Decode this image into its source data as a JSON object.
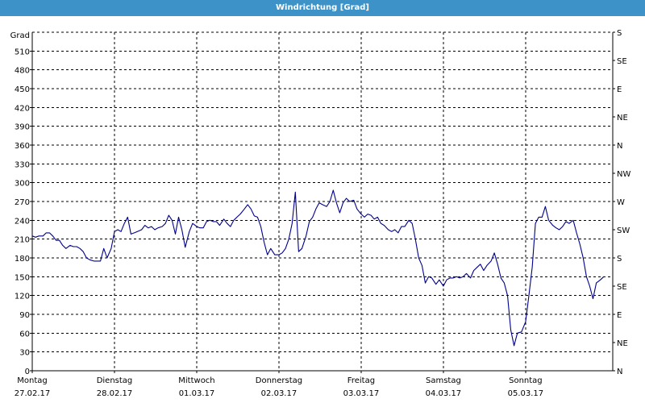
{
  "window": {
    "title": "Windrichtung [Grad]"
  },
  "colors": {
    "title_bar": "#3d93c8",
    "line": "#00008b",
    "grid": "#000000"
  },
  "chart_data": {
    "type": "line",
    "title": "Windrichtung [Grad]",
    "ylabel": "Grad",
    "ylim": [
      0,
      540
    ],
    "y_ticks": [
      0,
      30,
      60,
      90,
      120,
      150,
      180,
      210,
      240,
      270,
      300,
      330,
      360,
      390,
      420,
      450,
      480,
      510
    ],
    "y2_ticks": [
      "N",
      "NE",
      "E",
      "SE",
      "S",
      "SW",
      "W",
      "NW",
      "N",
      "NE",
      "E",
      "SE",
      "S"
    ],
    "x_days": [
      {
        "day": "Montag",
        "date": "27.02.17"
      },
      {
        "day": "Dienstag",
        "date": "28.02.17"
      },
      {
        "day": "Mittwoch",
        "date": "01.03.17"
      },
      {
        "day": "Donnerstag",
        "date": "02.03.17"
      },
      {
        "day": "Freitag",
        "date": "03.03.17"
      },
      {
        "day": "Samstag",
        "date": "04.03.17"
      },
      {
        "day": "Sonntag",
        "date": "05.03.17"
      }
    ],
    "x_range_days": [
      0,
      7.06
    ],
    "grid": true,
    "series": [
      {
        "points": [
          [
            0.0,
            215
          ],
          [
            0.04,
            213
          ],
          [
            0.08,
            215
          ],
          [
            0.13,
            215
          ],
          [
            0.17,
            220
          ],
          [
            0.21,
            220
          ],
          [
            0.25,
            215
          ],
          [
            0.29,
            208
          ],
          [
            0.33,
            208
          ],
          [
            0.37,
            200
          ],
          [
            0.41,
            195
          ],
          [
            0.46,
            200
          ],
          [
            0.5,
            198
          ],
          [
            0.54,
            198
          ],
          [
            0.58,
            195
          ],
          [
            0.62,
            190
          ],
          [
            0.66,
            180
          ],
          [
            0.7,
            177
          ],
          [
            0.75,
            175
          ],
          [
            0.79,
            175
          ],
          [
            0.83,
            175
          ],
          [
            0.87,
            195
          ],
          [
            0.91,
            180
          ],
          [
            0.96,
            195
          ],
          [
            1.0,
            222
          ],
          [
            1.04,
            225
          ],
          [
            1.08,
            222
          ],
          [
            1.12,
            235
          ],
          [
            1.16,
            245
          ],
          [
            1.2,
            218
          ],
          [
            1.24,
            220
          ],
          [
            1.28,
            222
          ],
          [
            1.33,
            225
          ],
          [
            1.37,
            232
          ],
          [
            1.41,
            228
          ],
          [
            1.45,
            230
          ],
          [
            1.49,
            225
          ],
          [
            1.53,
            228
          ],
          [
            1.58,
            230
          ],
          [
            1.62,
            235
          ],
          [
            1.66,
            248
          ],
          [
            1.7,
            240
          ],
          [
            1.74,
            218
          ],
          [
            1.78,
            245
          ],
          [
            1.82,
            225
          ],
          [
            1.86,
            197
          ],
          [
            1.91,
            222
          ],
          [
            1.95,
            235
          ],
          [
            2.0,
            230
          ],
          [
            2.04,
            228
          ],
          [
            2.08,
            228
          ],
          [
            2.12,
            238
          ],
          [
            2.16,
            240
          ],
          [
            2.2,
            238
          ],
          [
            2.24,
            238
          ],
          [
            2.28,
            232
          ],
          [
            2.33,
            242
          ],
          [
            2.37,
            235
          ],
          [
            2.41,
            230
          ],
          [
            2.45,
            240
          ],
          [
            2.49,
            245
          ],
          [
            2.53,
            250
          ],
          [
            2.58,
            258
          ],
          [
            2.62,
            265
          ],
          [
            2.66,
            258
          ],
          [
            2.7,
            247
          ],
          [
            2.74,
            245
          ],
          [
            2.78,
            230
          ],
          [
            2.82,
            205
          ],
          [
            2.86,
            185
          ],
          [
            2.9,
            195
          ],
          [
            2.95,
            185
          ],
          [
            3.0,
            185
          ],
          [
            3.04,
            188
          ],
          [
            3.08,
            195
          ],
          [
            3.12,
            210
          ],
          [
            3.16,
            235
          ],
          [
            3.2,
            285
          ],
          [
            3.24,
            190
          ],
          [
            3.28,
            195
          ],
          [
            3.33,
            215
          ],
          [
            3.37,
            238
          ],
          [
            3.41,
            245
          ],
          [
            3.45,
            258
          ],
          [
            3.49,
            268
          ],
          [
            3.53,
            265
          ],
          [
            3.58,
            262
          ],
          [
            3.62,
            270
          ],
          [
            3.66,
            288
          ],
          [
            3.7,
            268
          ],
          [
            3.74,
            252
          ],
          [
            3.78,
            268
          ],
          [
            3.82,
            275
          ],
          [
            3.86,
            270
          ],
          [
            3.91,
            272
          ],
          [
            3.95,
            258
          ],
          [
            4.0,
            250
          ],
          [
            4.04,
            245
          ],
          [
            4.08,
            250
          ],
          [
            4.12,
            248
          ],
          [
            4.16,
            242
          ],
          [
            4.2,
            245
          ],
          [
            4.24,
            235
          ],
          [
            4.28,
            232
          ],
          [
            4.33,
            225
          ],
          [
            4.37,
            222
          ],
          [
            4.41,
            225
          ],
          [
            4.45,
            220
          ],
          [
            4.49,
            230
          ],
          [
            4.53,
            230
          ],
          [
            4.58,
            240
          ],
          [
            4.62,
            235
          ],
          [
            4.66,
            210
          ],
          [
            4.7,
            180
          ],
          [
            4.74,
            168
          ],
          [
            4.78,
            140
          ],
          [
            4.82,
            150
          ],
          [
            4.86,
            148
          ],
          [
            4.91,
            138
          ],
          [
            4.95,
            145
          ],
          [
            5.0,
            135
          ],
          [
            5.04,
            145
          ],
          [
            5.08,
            148
          ],
          [
            5.12,
            148
          ],
          [
            5.16,
            150
          ],
          [
            5.2,
            148
          ],
          [
            5.24,
            150
          ],
          [
            5.28,
            155
          ],
          [
            5.33,
            148
          ],
          [
            5.37,
            160
          ],
          [
            5.41,
            165
          ],
          [
            5.45,
            170
          ],
          [
            5.49,
            160
          ],
          [
            5.53,
            168
          ],
          [
            5.58,
            175
          ],
          [
            5.62,
            188
          ],
          [
            5.66,
            170
          ],
          [
            5.7,
            148
          ],
          [
            5.74,
            140
          ],
          [
            5.78,
            120
          ],
          [
            5.82,
            65
          ],
          [
            5.86,
            40
          ],
          [
            5.9,
            60
          ],
          [
            5.95,
            62
          ],
          [
            6.0,
            78
          ],
          [
            6.04,
            120
          ],
          [
            6.08,
            165
          ],
          [
            6.12,
            235
          ],
          [
            6.16,
            245
          ],
          [
            6.2,
            245
          ],
          [
            6.24,
            262
          ],
          [
            6.28,
            240
          ],
          [
            6.33,
            232
          ],
          [
            6.37,
            228
          ],
          [
            6.41,
            225
          ],
          [
            6.45,
            230
          ],
          [
            6.49,
            238
          ],
          [
            6.53,
            235
          ],
          [
            6.58,
            240
          ],
          [
            6.62,
            220
          ],
          [
            6.66,
            202
          ],
          [
            6.7,
            180
          ],
          [
            6.74,
            150
          ],
          [
            6.78,
            135
          ],
          [
            6.82,
            115
          ],
          [
            6.86,
            140
          ],
          [
            6.91,
            145
          ],
          [
            6.95,
            150
          ]
        ]
      }
    ]
  }
}
